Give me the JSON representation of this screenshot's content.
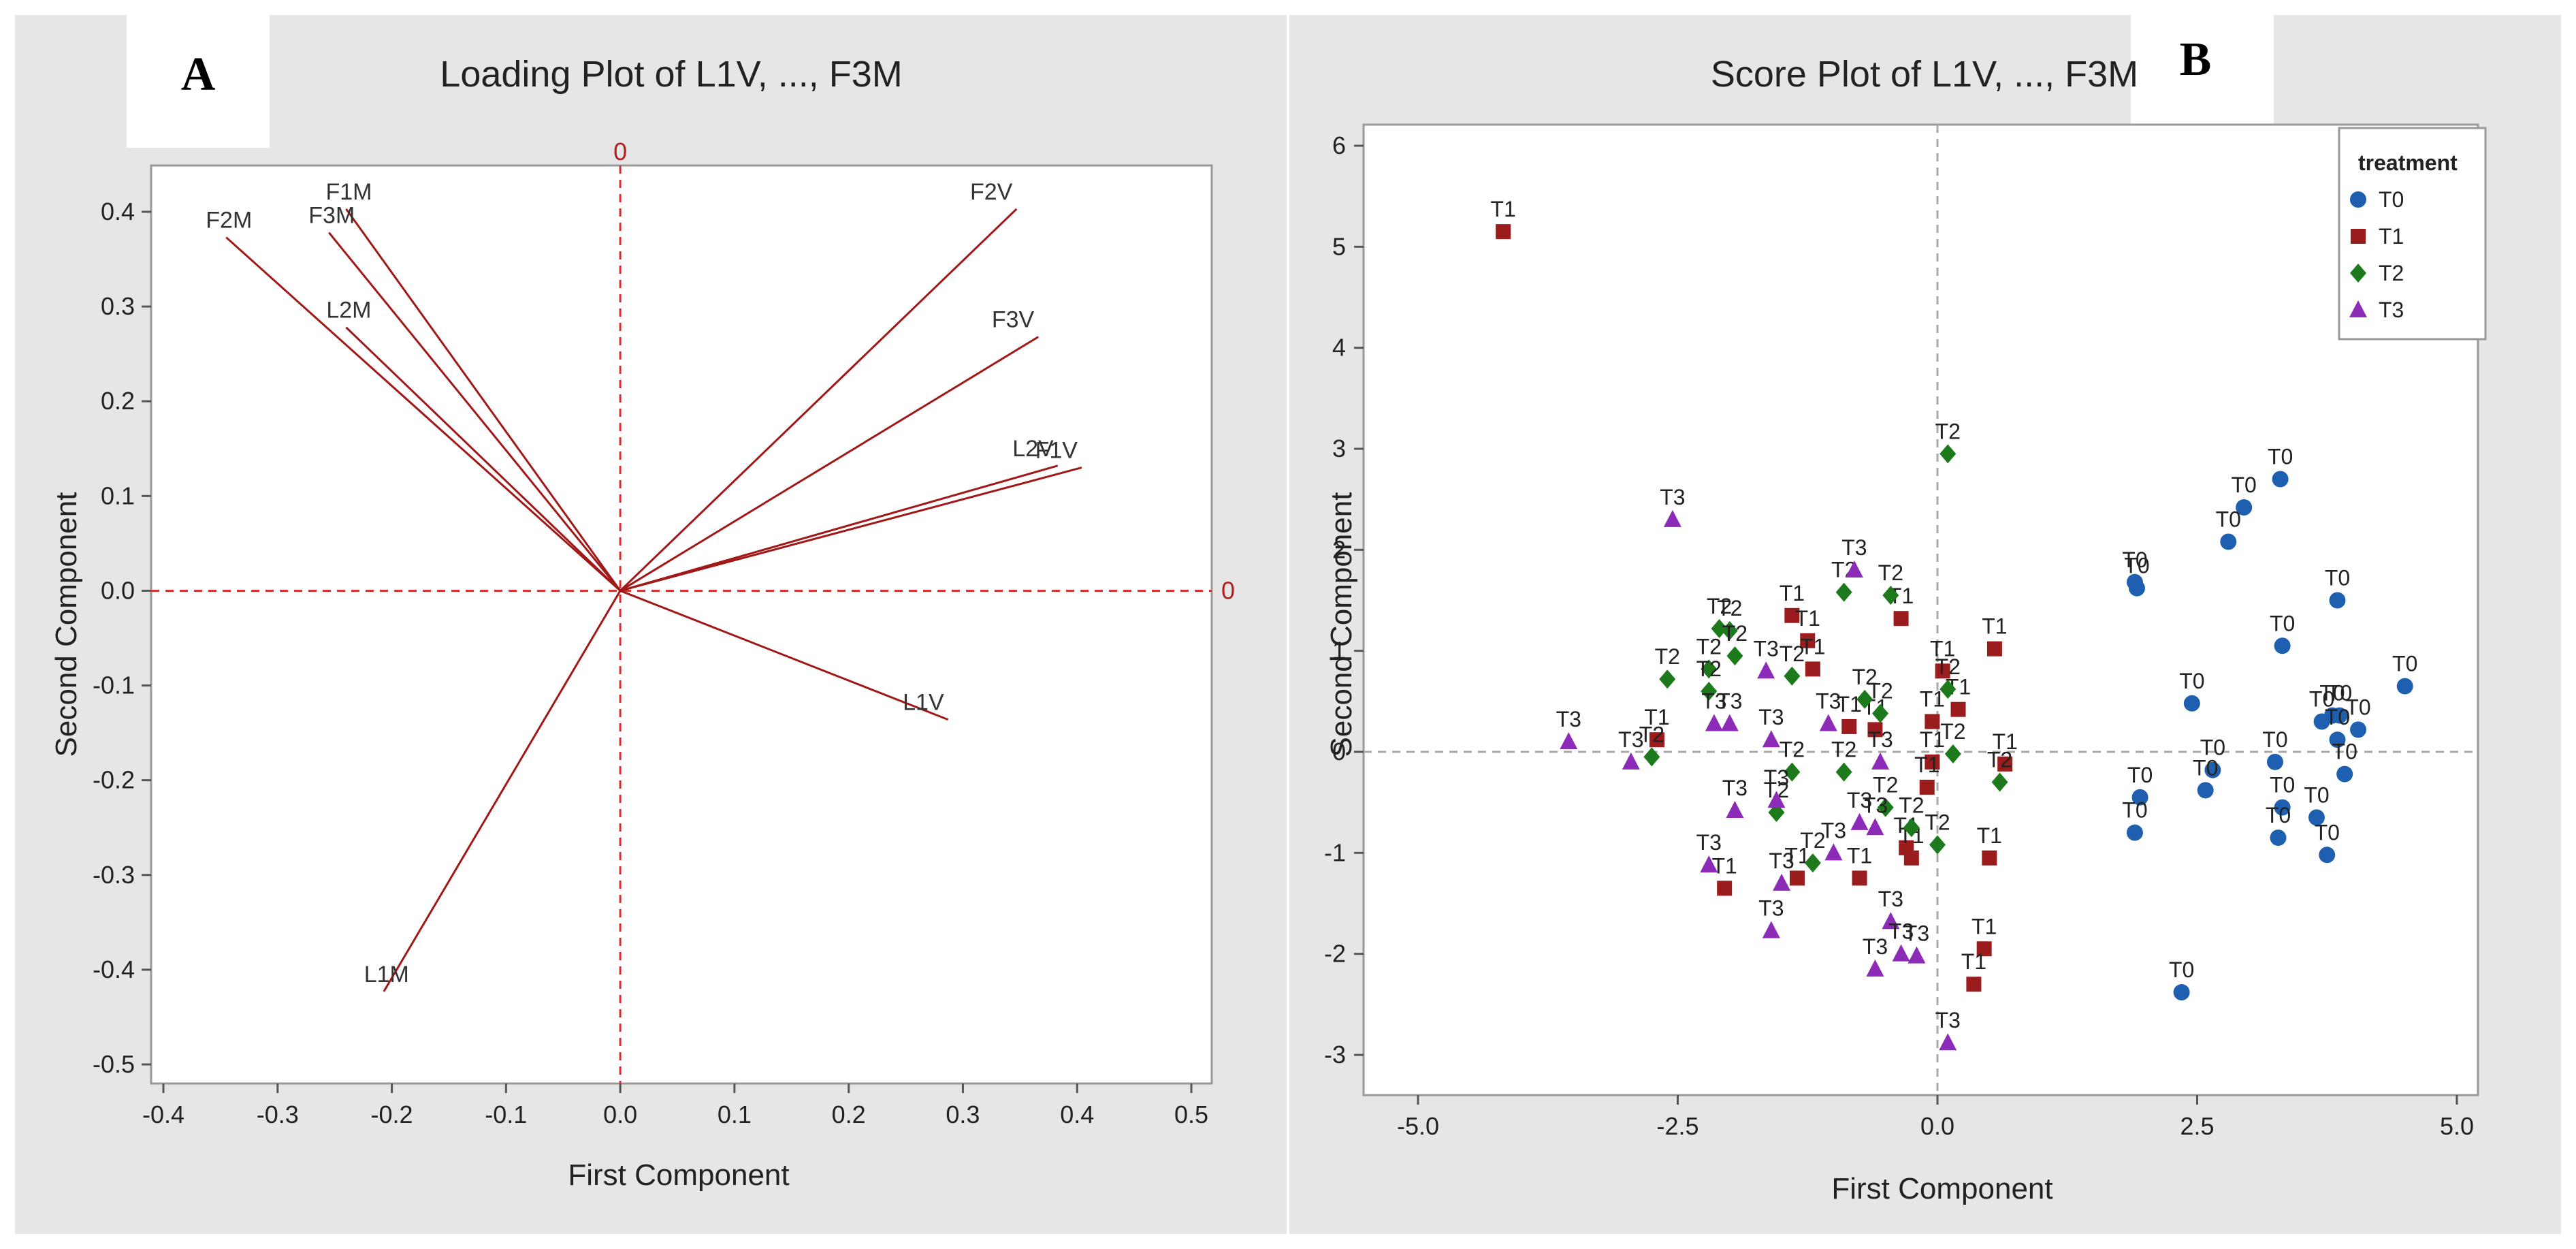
{
  "chart_data": [
    {
      "panel": "A",
      "type": "scatter",
      "title": "Loading Plot of L1V, ..., F3M",
      "xlabel": "First Component",
      "ylabel": "Second Component",
      "xlim": [
        -0.4,
        0.5
      ],
      "ylim": [
        -0.5,
        0.4
      ],
      "xticks": [
        -0.4,
        -0.3,
        -0.2,
        -0.1,
        0.0,
        0.1,
        0.2,
        0.3,
        0.4,
        0.5
      ],
      "yticks": [
        -0.5,
        -0.4,
        -0.3,
        -0.2,
        -0.1,
        0.0,
        0.1,
        0.2,
        0.3,
        0.4
      ],
      "xtick_labels": [
        "-0.4",
        "-0.3",
        "-0.2",
        "-0.1",
        "0.0",
        "0.1",
        "0.2",
        "0.3",
        "0.4",
        "0.5"
      ],
      "ytick_labels": [
        "-0.5",
        "-0.4",
        "-0.3",
        "-0.2",
        "-0.1",
        "0.0",
        "0.1",
        "0.2",
        "0.3",
        "0.4"
      ],
      "reference_label": "0",
      "color": "#a01818",
      "vectors": [
        {
          "name": "F2M",
          "x": -0.345,
          "y": 0.373
        },
        {
          "name": "F1M",
          "x": -0.24,
          "y": 0.403
        },
        {
          "name": "F3M",
          "x": -0.255,
          "y": 0.378
        },
        {
          "name": "L2M",
          "x": -0.24,
          "y": 0.278
        },
        {
          "name": "F2V",
          "x": 0.347,
          "y": 0.403
        },
        {
          "name": "F3V",
          "x": 0.366,
          "y": 0.268
        },
        {
          "name": "L2V",
          "x": 0.383,
          "y": 0.132
        },
        {
          "name": "F1V",
          "x": 0.404,
          "y": 0.13
        },
        {
          "name": "L1V",
          "x": 0.287,
          "y": -0.136
        },
        {
          "name": "L1M",
          "x": -0.207,
          "y": -0.423
        }
      ]
    },
    {
      "panel": "B",
      "type": "scatter",
      "title": "Score Plot of L1V, ..., F3M",
      "xlabel": "First Component",
      "ylabel": "Second Component",
      "xlim": [
        -5.0,
        5.0
      ],
      "ylim": [
        -3,
        6
      ],
      "xticks": [
        -5.0,
        -2.5,
        0.0,
        2.5,
        5.0
      ],
      "yticks": [
        -3,
        -2,
        -1,
        0,
        1,
        2,
        3,
        4,
        5,
        6
      ],
      "xtick_labels": [
        "-5.0",
        "-2.5",
        "0.0",
        "2.5",
        "5.0"
      ],
      "ytick_labels": [
        "-3",
        "-2",
        "-1",
        "0",
        "1",
        "2",
        "3",
        "4",
        "5",
        "6"
      ],
      "legend": {
        "title": "treatment",
        "position": "top-right"
      },
      "series": [
        {
          "name": "T0",
          "marker": "circle",
          "color": "#1f5fb0",
          "points": [
            [
              3.3,
              2.7
            ],
            [
              2.95,
              2.42
            ],
            [
              2.8,
              2.08
            ],
            [
              1.9,
              1.68
            ],
            [
              1.92,
              1.62
            ],
            [
              3.85,
              1.5
            ],
            [
              3.32,
              1.05
            ],
            [
              4.5,
              0.65
            ],
            [
              2.45,
              0.48
            ],
            [
              3.8,
              0.36
            ],
            [
              3.7,
              0.3
            ],
            [
              3.87,
              0.36
            ],
            [
              4.05,
              0.22
            ],
            [
              3.85,
              0.12
            ],
            [
              2.65,
              -0.18
            ],
            [
              3.25,
              -0.1
            ],
            [
              3.92,
              -0.22
            ],
            [
              1.95,
              -0.45
            ],
            [
              2.58,
              -0.38
            ],
            [
              3.32,
              -0.55
            ],
            [
              3.65,
              -0.65
            ],
            [
              1.9,
              -0.8
            ],
            [
              3.28,
              -0.85
            ],
            [
              3.75,
              -1.02
            ],
            [
              2.35,
              -2.38
            ]
          ]
        },
        {
          "name": "T1",
          "marker": "square",
          "color": "#9b1c1c",
          "points": [
            [
              -4.18,
              5.15
            ],
            [
              -1.4,
              1.35
            ],
            [
              -1.25,
              1.1
            ],
            [
              -0.35,
              1.32
            ],
            [
              0.55,
              1.02
            ],
            [
              -1.2,
              0.82
            ],
            [
              0.05,
              0.8
            ],
            [
              0.2,
              0.42
            ],
            [
              -0.85,
              0.25
            ],
            [
              -0.6,
              0.22
            ],
            [
              -0.05,
              0.3
            ],
            [
              0.65,
              -0.12
            ],
            [
              -2.7,
              0.12
            ],
            [
              -0.05,
              -0.1
            ],
            [
              -0.1,
              -0.35
            ],
            [
              -0.3,
              -0.95
            ],
            [
              -0.25,
              -1.05
            ],
            [
              0.5,
              -1.05
            ],
            [
              -1.35,
              -1.25
            ],
            [
              -2.05,
              -1.35
            ],
            [
              -0.75,
              -1.25
            ],
            [
              0.45,
              -1.95
            ],
            [
              0.35,
              -2.3
            ]
          ]
        },
        {
          "name": "T2",
          "marker": "diamond",
          "color": "#1c7a1c",
          "points": [
            [
              0.1,
              2.95
            ],
            [
              -0.9,
              1.58
            ],
            [
              -0.45,
              1.55
            ],
            [
              -2.1,
              1.22
            ],
            [
              -2.0,
              1.2
            ],
            [
              -1.95,
              0.95
            ],
            [
              -2.2,
              0.82
            ],
            [
              -1.4,
              0.75
            ],
            [
              -2.6,
              0.72
            ],
            [
              -0.7,
              0.52
            ],
            [
              -0.55,
              0.38
            ],
            [
              0.1,
              0.62
            ],
            [
              -2.2,
              0.6
            ],
            [
              -2.75,
              -0.05
            ],
            [
              0.15,
              -0.02
            ],
            [
              -0.9,
              -0.2
            ],
            [
              -1.4,
              -0.2
            ],
            [
              0.6,
              -0.3
            ],
            [
              -0.5,
              -0.55
            ],
            [
              -1.55,
              -0.6
            ],
            [
              -0.25,
              -0.75
            ],
            [
              0.0,
              -0.92
            ],
            [
              -1.2,
              -1.1
            ]
          ]
        },
        {
          "name": "T3",
          "marker": "triangle",
          "color": "#8b2bb8",
          "points": [
            [
              -2.55,
              2.3
            ],
            [
              -0.8,
              1.8
            ],
            [
              -1.65,
              0.8
            ],
            [
              -1.05,
              0.28
            ],
            [
              -2.15,
              0.28
            ],
            [
              -2.0,
              0.28
            ],
            [
              -1.6,
              0.12
            ],
            [
              -3.55,
              0.1
            ],
            [
              -2.95,
              -0.1
            ],
            [
              -0.55,
              -0.1
            ],
            [
              -1.95,
              -0.58
            ],
            [
              -1.55,
              -0.48
            ],
            [
              -0.75,
              -0.7
            ],
            [
              -0.6,
              -0.75
            ],
            [
              -1.0,
              -1.0
            ],
            [
              -2.2,
              -1.12
            ],
            [
              -1.5,
              -1.3
            ],
            [
              -0.45,
              -1.68
            ],
            [
              -1.6,
              -1.77
            ],
            [
              -0.35,
              -2.0
            ],
            [
              -0.2,
              -2.02
            ],
            [
              -0.6,
              -2.15
            ],
            [
              0.1,
              -2.88
            ]
          ]
        }
      ]
    }
  ],
  "panel_letters": {
    "a": "A",
    "b": "B"
  }
}
